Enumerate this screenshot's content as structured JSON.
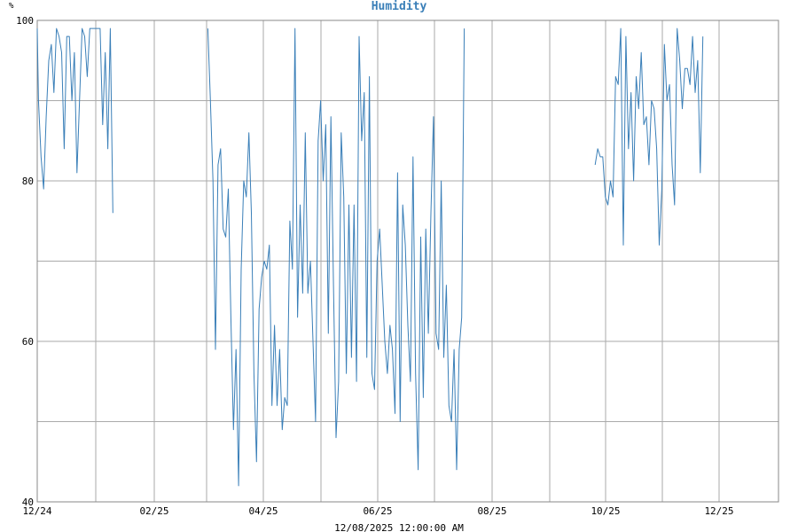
{
  "chart_data": {
    "type": "line",
    "title": "Humidity",
    "ylabel": "%",
    "xlabel": "",
    "footer": "12/08/2025 12:00:00 AM",
    "ylim": [
      40,
      100
    ],
    "y_ticks": [
      40,
      60,
      80,
      100
    ],
    "y_gridlines": [
      40,
      50,
      60,
      70,
      80,
      90,
      100
    ],
    "x_tick_labels": [
      "12/24",
      "02/25",
      "04/25",
      "06/25",
      "08/25",
      "10/25",
      "12/25"
    ],
    "grid": true,
    "colors": {
      "line": "#3a7fb8",
      "grid": "#aaaaaa",
      "title": "#3a7fb8"
    },
    "series": [
      {
        "values": [
          [
            0,
            99
          ],
          [
            0.5,
            90
          ],
          [
            1.5,
            83
          ],
          [
            2.5,
            79
          ],
          [
            3.5,
            88
          ],
          [
            4.5,
            95
          ],
          [
            5.5,
            97
          ],
          [
            6.5,
            91
          ],
          [
            7.5,
            99
          ],
          [
            8.5,
            98
          ],
          [
            9.5,
            96
          ],
          [
            10.5,
            84
          ],
          [
            11.5,
            98
          ],
          [
            12.5,
            98
          ],
          [
            13.5,
            90
          ],
          [
            14.5,
            96
          ],
          [
            15.5,
            81
          ],
          [
            16.5,
            90
          ],
          [
            17.5,
            99
          ],
          [
            18.5,
            98
          ],
          [
            19.5,
            93
          ],
          [
            20.5,
            99
          ],
          [
            21.5,
            99
          ],
          [
            22.5,
            99
          ],
          [
            23.5,
            99
          ],
          [
            24.5,
            99
          ],
          [
            25.5,
            87
          ],
          [
            26.5,
            96
          ],
          [
            27.5,
            84
          ],
          [
            28.5,
            99
          ],
          [
            29.5,
            76
          ],
          [
            null,
            null
          ],
          [
            66.5,
            99
          ],
          [
            67.5,
            90
          ],
          [
            68.5,
            80
          ],
          [
            69.5,
            59
          ],
          [
            70.5,
            82
          ],
          [
            71.5,
            84
          ],
          [
            72.5,
            74
          ],
          [
            73.5,
            73
          ],
          [
            74.5,
            79
          ],
          [
            75.5,
            63
          ],
          [
            76.5,
            49
          ],
          [
            77.5,
            59
          ],
          [
            78.5,
            42
          ],
          [
            79.5,
            69
          ],
          [
            80.5,
            80
          ],
          [
            81.5,
            78
          ],
          [
            82.5,
            86
          ],
          [
            83.5,
            76
          ],
          [
            84.5,
            56
          ],
          [
            85.5,
            45
          ],
          [
            86.5,
            64
          ],
          [
            87.5,
            68
          ],
          [
            88.5,
            70
          ],
          [
            89.5,
            69
          ],
          [
            90.5,
            72
          ],
          [
            91.5,
            52
          ],
          [
            92.5,
            62
          ],
          [
            93.5,
            52
          ],
          [
            94.5,
            59
          ],
          [
            95.5,
            49
          ],
          [
            96.5,
            53
          ],
          [
            97.5,
            52
          ],
          [
            98.5,
            75
          ],
          [
            99.5,
            69
          ],
          [
            100.5,
            99
          ],
          [
            101.5,
            63
          ],
          [
            102.5,
            77
          ],
          [
            103.5,
            66
          ],
          [
            104.5,
            86
          ],
          [
            105.5,
            66
          ],
          [
            106.5,
            70
          ],
          [
            107.5,
            60
          ],
          [
            108.5,
            50
          ],
          [
            109.5,
            85
          ],
          [
            110.5,
            90
          ],
          [
            111.5,
            80
          ],
          [
            112.5,
            87
          ],
          [
            113.5,
            61
          ],
          [
            114.5,
            88
          ],
          [
            115.5,
            67
          ],
          [
            116.5,
            48
          ],
          [
            117.5,
            55
          ],
          [
            118.5,
            86
          ],
          [
            119.5,
            78
          ],
          [
            120.5,
            56
          ],
          [
            121.5,
            77
          ],
          [
            122.5,
            58
          ],
          [
            123.5,
            77
          ],
          [
            124.5,
            55
          ],
          [
            125.5,
            98
          ],
          [
            126.5,
            85
          ],
          [
            127.5,
            91
          ],
          [
            128.5,
            58
          ],
          [
            129.5,
            93
          ],
          [
            130.5,
            56
          ],
          [
            131.5,
            54
          ],
          [
            132.5,
            70
          ],
          [
            133.5,
            74
          ],
          [
            134.5,
            67
          ],
          [
            135.5,
            60
          ],
          [
            136.5,
            56
          ],
          [
            137.5,
            62
          ],
          [
            138.5,
            59
          ],
          [
            139.5,
            51
          ],
          [
            140.5,
            81
          ],
          [
            141.5,
            50
          ],
          [
            142.5,
            77
          ],
          [
            143.5,
            72
          ],
          [
            144.5,
            62
          ],
          [
            145.5,
            55
          ],
          [
            146.5,
            83
          ],
          [
            147.5,
            56
          ],
          [
            148.5,
            44
          ],
          [
            149.5,
            73
          ],
          [
            150.5,
            53
          ],
          [
            151.5,
            74
          ],
          [
            152.5,
            61
          ],
          [
            153.5,
            76
          ],
          [
            154.5,
            88
          ],
          [
            155.5,
            61
          ],
          [
            156.5,
            59
          ],
          [
            157.5,
            80
          ],
          [
            158.5,
            58
          ],
          [
            159.5,
            67
          ],
          [
            160.5,
            52
          ],
          [
            161.5,
            50
          ],
          [
            162.5,
            59
          ],
          [
            163.5,
            44
          ],
          [
            164.5,
            59
          ],
          [
            165.5,
            63
          ],
          [
            166.5,
            99
          ],
          [
            null,
            null
          ],
          [
            217.5,
            82
          ],
          [
            218.5,
            84
          ],
          [
            219.5,
            83
          ],
          [
            220.5,
            83
          ],
          [
            221.5,
            78
          ],
          [
            222.5,
            77
          ],
          [
            223.5,
            80
          ],
          [
            224.5,
            78
          ],
          [
            225.5,
            93
          ],
          [
            226.5,
            92
          ],
          [
            227.5,
            99
          ],
          [
            228.5,
            72
          ],
          [
            229.5,
            98
          ],
          [
            230.5,
            84
          ],
          [
            231.5,
            91
          ],
          [
            232.5,
            80
          ],
          [
            233.5,
            93
          ],
          [
            234.5,
            89
          ],
          [
            235.5,
            96
          ],
          [
            236.5,
            87
          ],
          [
            237.5,
            88
          ],
          [
            238.5,
            82
          ],
          [
            239.5,
            90
          ],
          [
            240.5,
            89
          ],
          [
            241.5,
            84
          ],
          [
            242.5,
            72
          ],
          [
            243.5,
            79
          ],
          [
            244.5,
            97
          ],
          [
            245.5,
            90
          ],
          [
            246.5,
            92
          ],
          [
            247.5,
            82
          ],
          [
            248.5,
            77
          ],
          [
            249.5,
            99
          ],
          [
            250.5,
            95
          ],
          [
            251.5,
            89
          ],
          [
            252.5,
            94
          ],
          [
            253.5,
            94
          ],
          [
            254.5,
            92
          ],
          [
            255.5,
            98
          ],
          [
            256.5,
            91
          ],
          [
            257.5,
            95
          ],
          [
            258.5,
            81
          ],
          [
            259.5,
            98
          ]
        ]
      }
    ],
    "x_range": [
      0,
      289
    ]
  }
}
